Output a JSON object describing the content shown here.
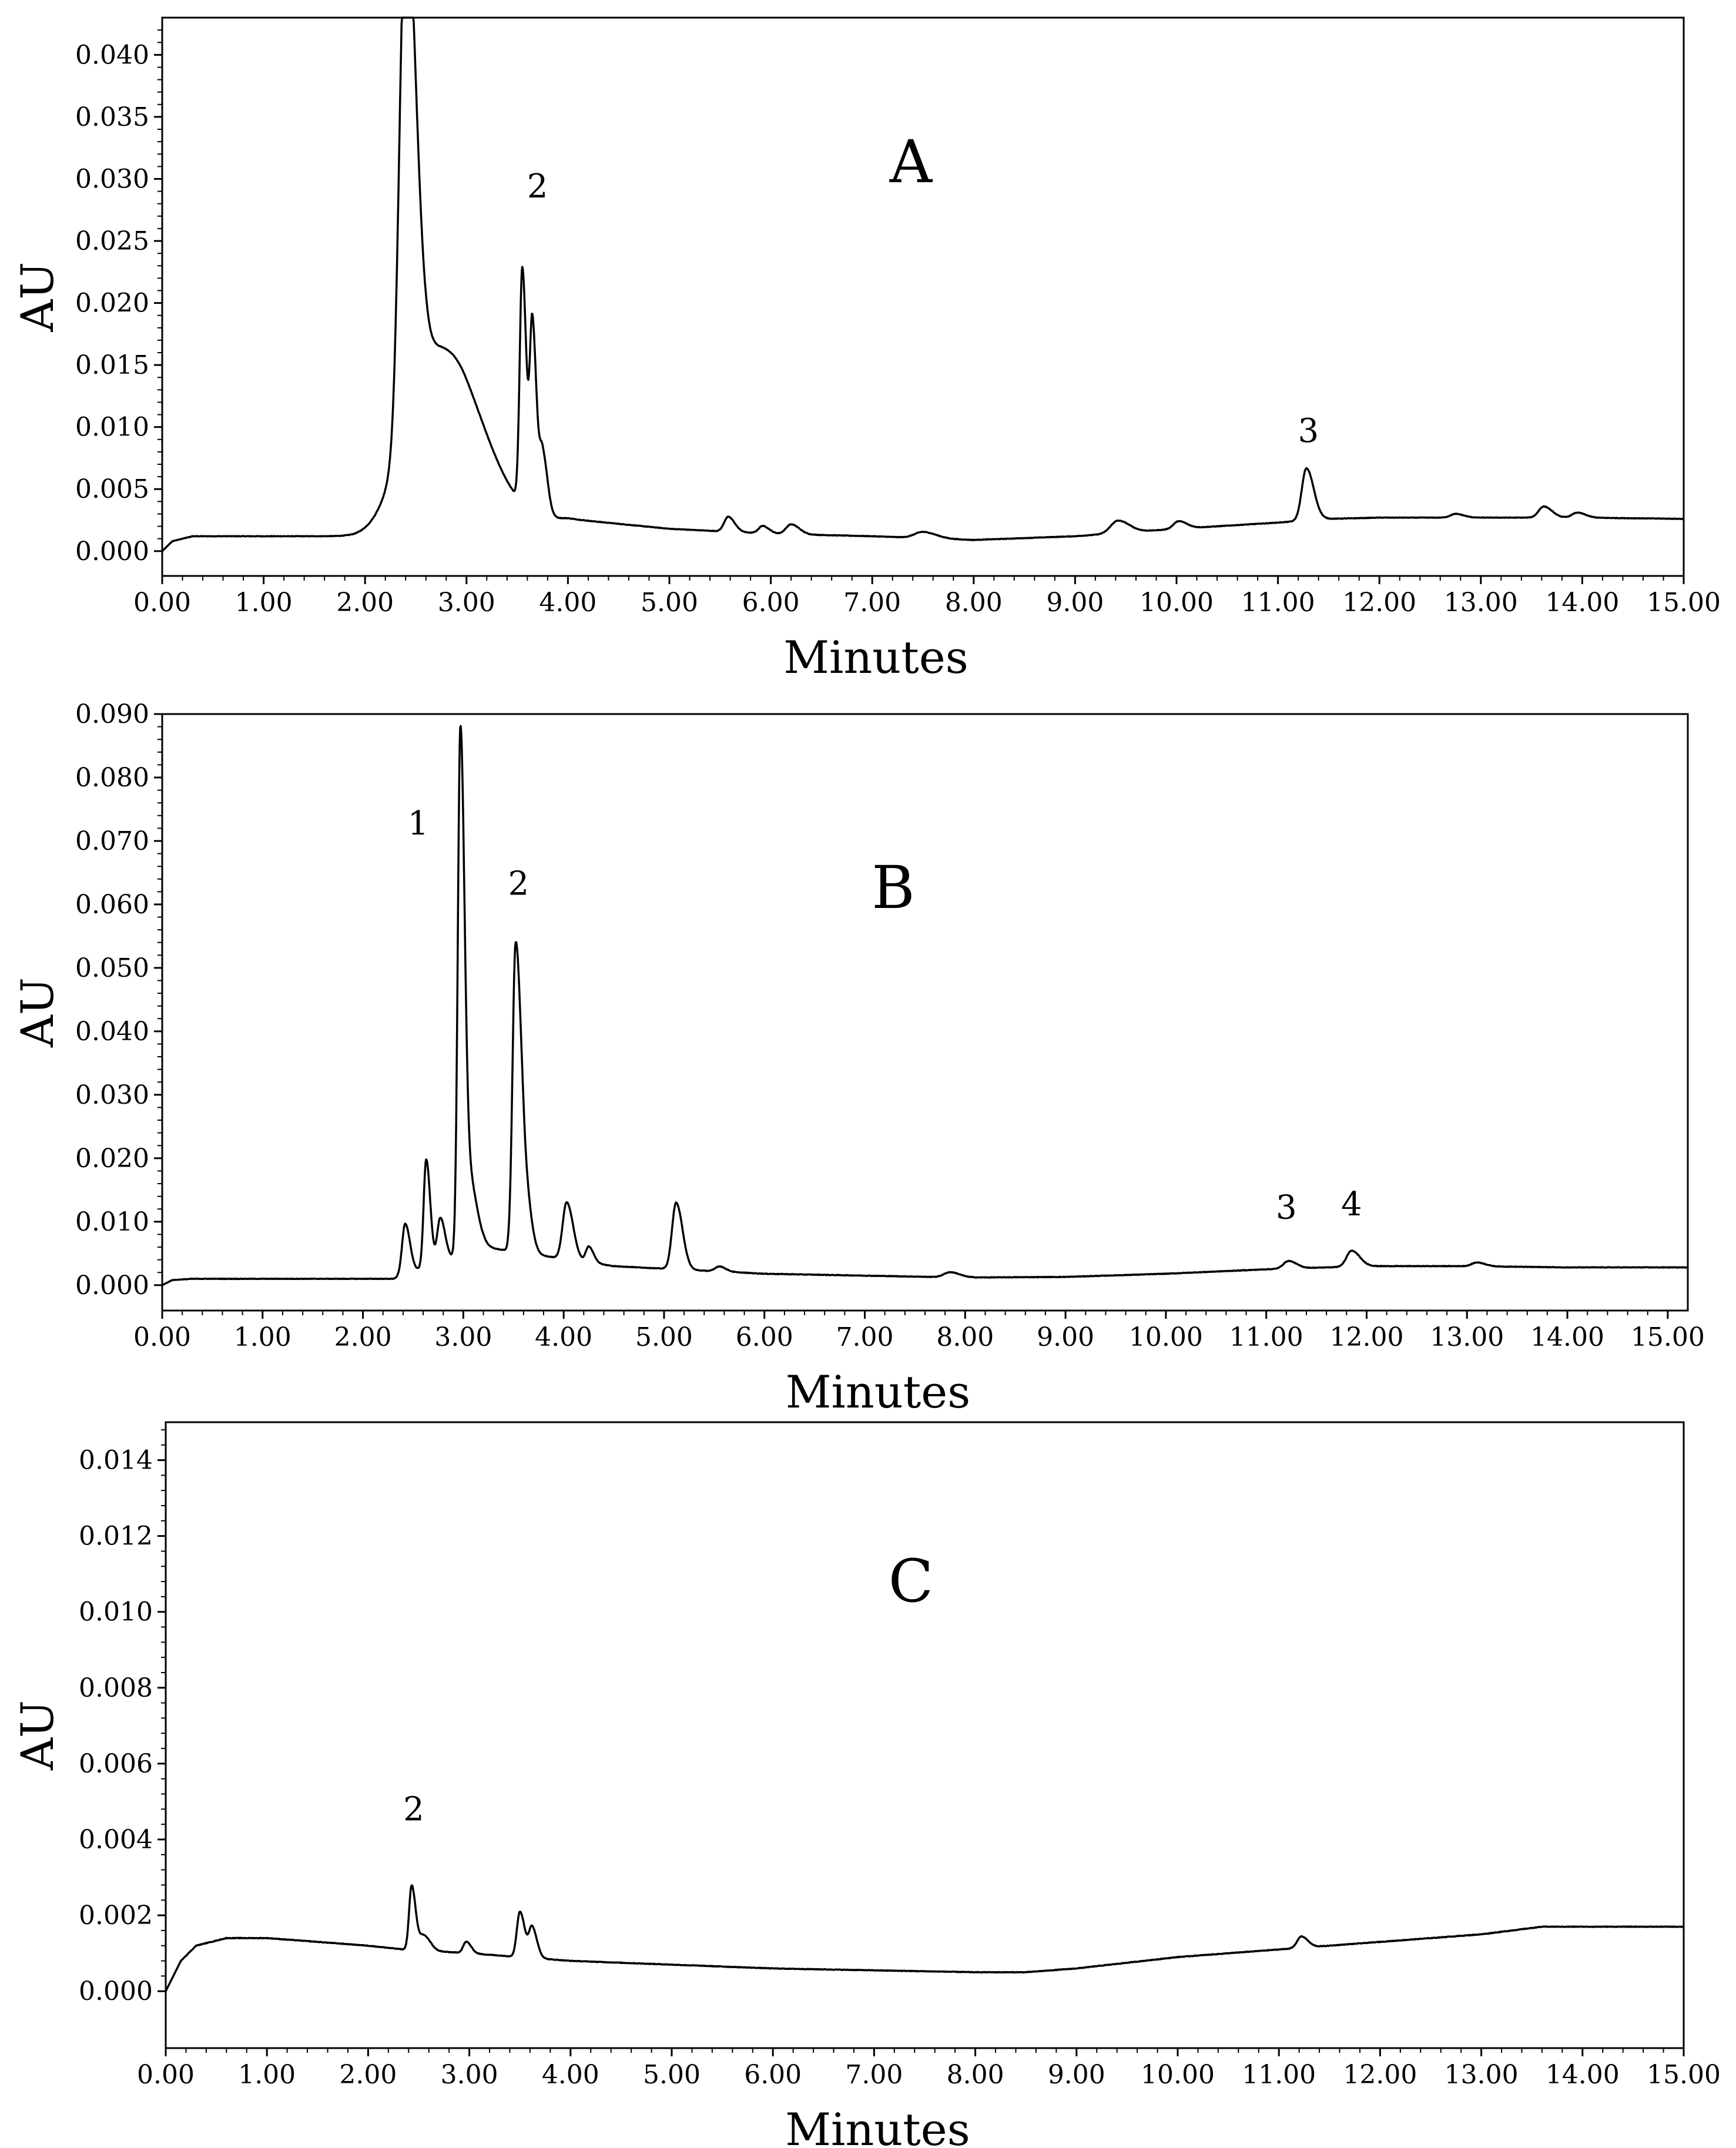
{
  "chart_data": [
    {
      "type": "line",
      "panel_label": "A",
      "xlabel": "Minutes",
      "ylabel": "AU",
      "xlim": [
        0,
        15
      ],
      "ylim": [
        -0.002,
        0.043
      ],
      "x_ticks": [
        "0.00",
        "1.00",
        "2.00",
        "3.00",
        "4.00",
        "5.00",
        "6.00",
        "7.00",
        "8.00",
        "9.00",
        "10.00",
        "11.00",
        "12.00",
        "13.00",
        "14.00",
        "15.00"
      ],
      "y_ticks": [
        "0.000",
        "0.005",
        "0.010",
        "0.015",
        "0.020",
        "0.025",
        "0.030",
        "0.035",
        "0.040"
      ],
      "baseline": [
        [
          0,
          0
        ],
        [
          0.1,
          0.0008
        ],
        [
          0.3,
          0.0012
        ],
        [
          1.0,
          0.0012
        ],
        [
          1.9,
          0.0012
        ],
        [
          4.0,
          0.0026
        ],
        [
          5.0,
          0.0018
        ],
        [
          6.0,
          0.0014
        ],
        [
          7.0,
          0.0012
        ],
        [
          8.0,
          0.0009
        ],
        [
          9.0,
          0.0012
        ],
        [
          10.0,
          0.0018
        ],
        [
          11.0,
          0.0023
        ],
        [
          11.5,
          0.0026
        ],
        [
          12.0,
          0.0027
        ],
        [
          13.0,
          0.0027
        ],
        [
          14.0,
          0.0027
        ],
        [
          15.0,
          0.0026
        ]
      ],
      "peaks": [
        {
          "x": 2.4,
          "h": 0.041,
          "w": 0.06
        },
        {
          "x": 2.62,
          "h": 0.014,
          "w": 0.25
        },
        {
          "x": 3.0,
          "h": 0.003,
          "w": 0.2
        },
        {
          "x": 3.55,
          "h": 0.019,
          "w": 0.025
        },
        {
          "x": 3.65,
          "h": 0.015,
          "w": 0.025
        },
        {
          "x": 3.75,
          "h": 0.005,
          "w": 0.03
        },
        {
          "x": 5.58,
          "h": 0.0012,
          "w": 0.04
        },
        {
          "x": 5.92,
          "h": 0.0006,
          "w": 0.04
        },
        {
          "x": 6.2,
          "h": 0.0008,
          "w": 0.05
        },
        {
          "x": 7.5,
          "h": 0.0005,
          "w": 0.08
        },
        {
          "x": 9.42,
          "h": 0.001,
          "w": 0.07
        },
        {
          "x": 10.02,
          "h": 0.0006,
          "w": 0.05
        },
        {
          "x": 11.28,
          "h": 0.0042,
          "w": 0.045
        },
        {
          "x": 12.75,
          "h": 0.0003,
          "w": 0.05
        },
        {
          "x": 13.62,
          "h": 0.0009,
          "w": 0.05
        },
        {
          "x": 13.95,
          "h": 0.0004,
          "w": 0.05
        }
      ],
      "annotations": [
        {
          "text": "2",
          "x": 3.7,
          "y": 0.0285
        },
        {
          "text": "3",
          "x": 11.3,
          "y": 0.0088
        }
      ]
    },
    {
      "type": "line",
      "panel_label": "B",
      "xlabel": "Minutes",
      "ylabel": "AU",
      "xlim": [
        0,
        15.2
      ],
      "ylim": [
        -0.004,
        0.09
      ],
      "x_ticks": [
        "0.00",
        "1.00",
        "2.00",
        "3.00",
        "4.00",
        "5.00",
        "6.00",
        "7.00",
        "8.00",
        "9.00",
        "10.00",
        "11.00",
        "12.00",
        "13.00",
        "14.00",
        "15.00"
      ],
      "y_ticks": [
        "0.000",
        "0.010",
        "0.020",
        "0.030",
        "0.040",
        "0.050",
        "0.060",
        "0.070",
        "0.080",
        "0.090"
      ],
      "baseline": [
        [
          0,
          0
        ],
        [
          0.1,
          0.0008
        ],
        [
          0.3,
          0.001
        ],
        [
          1.0,
          0.001
        ],
        [
          2.3,
          0.001
        ],
        [
          3.2,
          0.006
        ],
        [
          4.5,
          0.003
        ],
        [
          5.5,
          0.0022
        ],
        [
          6.0,
          0.0018
        ],
        [
          7.0,
          0.0015
        ],
        [
          8.0,
          0.0012
        ],
        [
          9.0,
          0.0013
        ],
        [
          10.0,
          0.0018
        ],
        [
          11.0,
          0.0025
        ],
        [
          12.0,
          0.003
        ],
        [
          13.0,
          0.003
        ],
        [
          14.0,
          0.0028
        ],
        [
          15.2,
          0.0028
        ]
      ],
      "peaks": [
        {
          "x": 2.42,
          "h": 0.008,
          "w": 0.03
        },
        {
          "x": 2.63,
          "h": 0.017,
          "w": 0.025
        },
        {
          "x": 2.77,
          "h": 0.007,
          "w": 0.03
        },
        {
          "x": 2.97,
          "h": 0.08,
          "w": 0.025
        },
        {
          "x": 3.05,
          "h": 0.012,
          "w": 0.05
        },
        {
          "x": 3.52,
          "h": 0.047,
          "w": 0.03
        },
        {
          "x": 3.6,
          "h": 0.012,
          "w": 0.04
        },
        {
          "x": 4.03,
          "h": 0.009,
          "w": 0.04
        },
        {
          "x": 4.25,
          "h": 0.0025,
          "w": 0.03
        },
        {
          "x": 5.12,
          "h": 0.0105,
          "w": 0.04
        },
        {
          "x": 5.55,
          "h": 0.0008,
          "w": 0.04
        },
        {
          "x": 7.85,
          "h": 0.0008,
          "w": 0.06
        },
        {
          "x": 11.22,
          "h": 0.0012,
          "w": 0.05
        },
        {
          "x": 11.85,
          "h": 0.0025,
          "w": 0.05
        },
        {
          "x": 13.1,
          "h": 0.0006,
          "w": 0.05
        }
      ],
      "annotations": [
        {
          "text": "1",
          "x": 2.55,
          "y": 0.071
        },
        {
          "text": "2",
          "x": 3.55,
          "y": 0.0615
        },
        {
          "text": "3",
          "x": 11.2,
          "y": 0.0105
        },
        {
          "text": "4",
          "x": 11.85,
          "y": 0.011
        }
      ]
    },
    {
      "type": "line",
      "panel_label": "C",
      "xlabel": "Minutes",
      "ylabel": "AU",
      "xlim": [
        0,
        15
      ],
      "ylim": [
        -0.0015,
        0.015
      ],
      "x_ticks": [
        "0.00",
        "1.00",
        "2.00",
        "3.00",
        "4.00",
        "5.00",
        "6.00",
        "7.00",
        "8.00",
        "9.00",
        "10.00",
        "11.00",
        "12.00",
        "13.00",
        "14.00",
        "15.00"
      ],
      "y_ticks": [
        "0.000",
        "0.002",
        "0.004",
        "0.006",
        "0.008",
        "0.010",
        "0.012",
        "0.014"
      ],
      "baseline": [
        [
          0,
          0
        ],
        [
          0.15,
          0.0008
        ],
        [
          0.3,
          0.0012
        ],
        [
          0.6,
          0.0014
        ],
        [
          1.0,
          0.0014
        ],
        [
          1.5,
          0.0013
        ],
        [
          2.0,
          0.0012
        ],
        [
          2.35,
          0.0011
        ],
        [
          3.0,
          0.001
        ],
        [
          4.0,
          0.0008
        ],
        [
          5.0,
          0.0007
        ],
        [
          6.0,
          0.0006
        ],
        [
          7.0,
          0.00055
        ],
        [
          8.0,
          0.0005
        ],
        [
          8.5,
          0.0005
        ],
        [
          9.0,
          0.0006
        ],
        [
          10.0,
          0.0009
        ],
        [
          11.0,
          0.0011
        ],
        [
          12.0,
          0.0013
        ],
        [
          13.0,
          0.0015
        ],
        [
          13.6,
          0.0017
        ],
        [
          14.0,
          0.0017
        ],
        [
          15.0,
          0.0017
        ]
      ],
      "peaks": [
        {
          "x": 2.43,
          "h": 0.0017,
          "w": 0.025
        },
        {
          "x": 2.55,
          "h": 0.0004,
          "w": 0.04
        },
        {
          "x": 2.97,
          "h": 0.0003,
          "w": 0.03
        },
        {
          "x": 3.5,
          "h": 0.0012,
          "w": 0.03
        },
        {
          "x": 3.62,
          "h": 0.0008,
          "w": 0.03
        },
        {
          "x": 11.22,
          "h": 0.0003,
          "w": 0.04
        }
      ],
      "annotations": [
        {
          "text": "2",
          "x": 2.45,
          "y": 0.0045
        }
      ]
    }
  ]
}
